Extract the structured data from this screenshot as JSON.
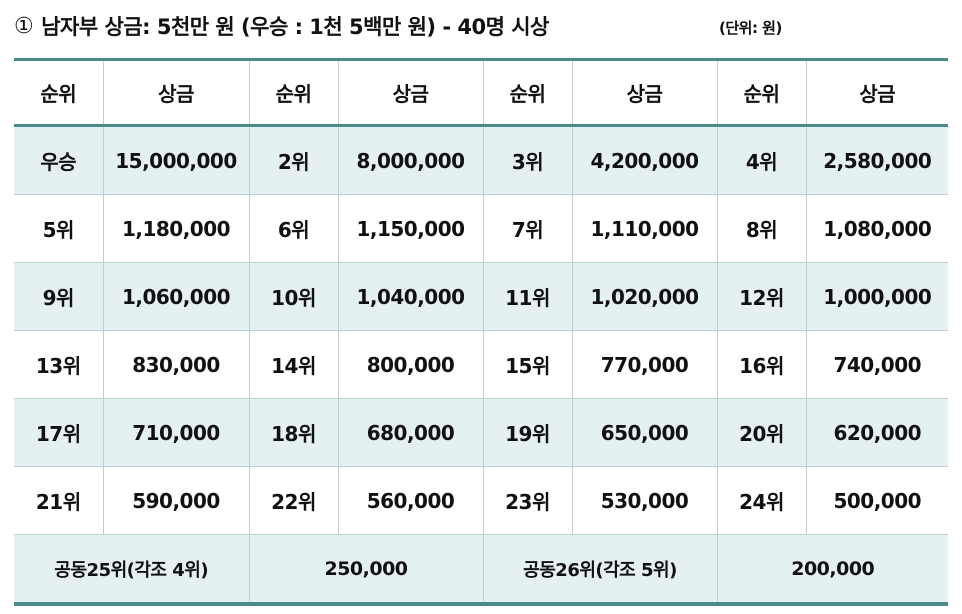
{
  "title": {
    "marker": "①",
    "text": "남자부 상금: 5천만 원 (우승 : 1천 5백만 원) - 40명 시상"
  },
  "unit_note": "(단위: 원)",
  "table": {
    "headers": [
      "순위",
      "상금",
      "순위",
      "상금",
      "순위",
      "상금",
      "순위",
      "상금"
    ],
    "rows": [
      [
        "우승",
        "15,000,000",
        "2위",
        "8,000,000",
        "3위",
        "4,200,000",
        "4위",
        "2,580,000"
      ],
      [
        "5위",
        "1,180,000",
        "6위",
        "1,150,000",
        "7위",
        "1,110,000",
        "8위",
        "1,080,000"
      ],
      [
        "9위",
        "1,060,000",
        "10위",
        "1,040,000",
        "11위",
        "1,020,000",
        "12위",
        "1,000,000"
      ],
      [
        "13위",
        "830,000",
        "14위",
        "800,000",
        "15위",
        "770,000",
        "16위",
        "740,000"
      ],
      [
        "17위",
        "710,000",
        "18위",
        "680,000",
        "19위",
        "650,000",
        "20위",
        "620,000"
      ],
      [
        "21위",
        "590,000",
        "22위",
        "560,000",
        "23위",
        "530,000",
        "24위",
        "500,000"
      ]
    ],
    "footer": [
      "공동25위(각조 4위)",
      "250,000",
      "공동26위(각조 5위)",
      "200,000"
    ]
  },
  "colors": {
    "accent_border": "#4a8a8a",
    "row_shade": "#e5f0f2",
    "grid_line": "#b9d3d3"
  }
}
